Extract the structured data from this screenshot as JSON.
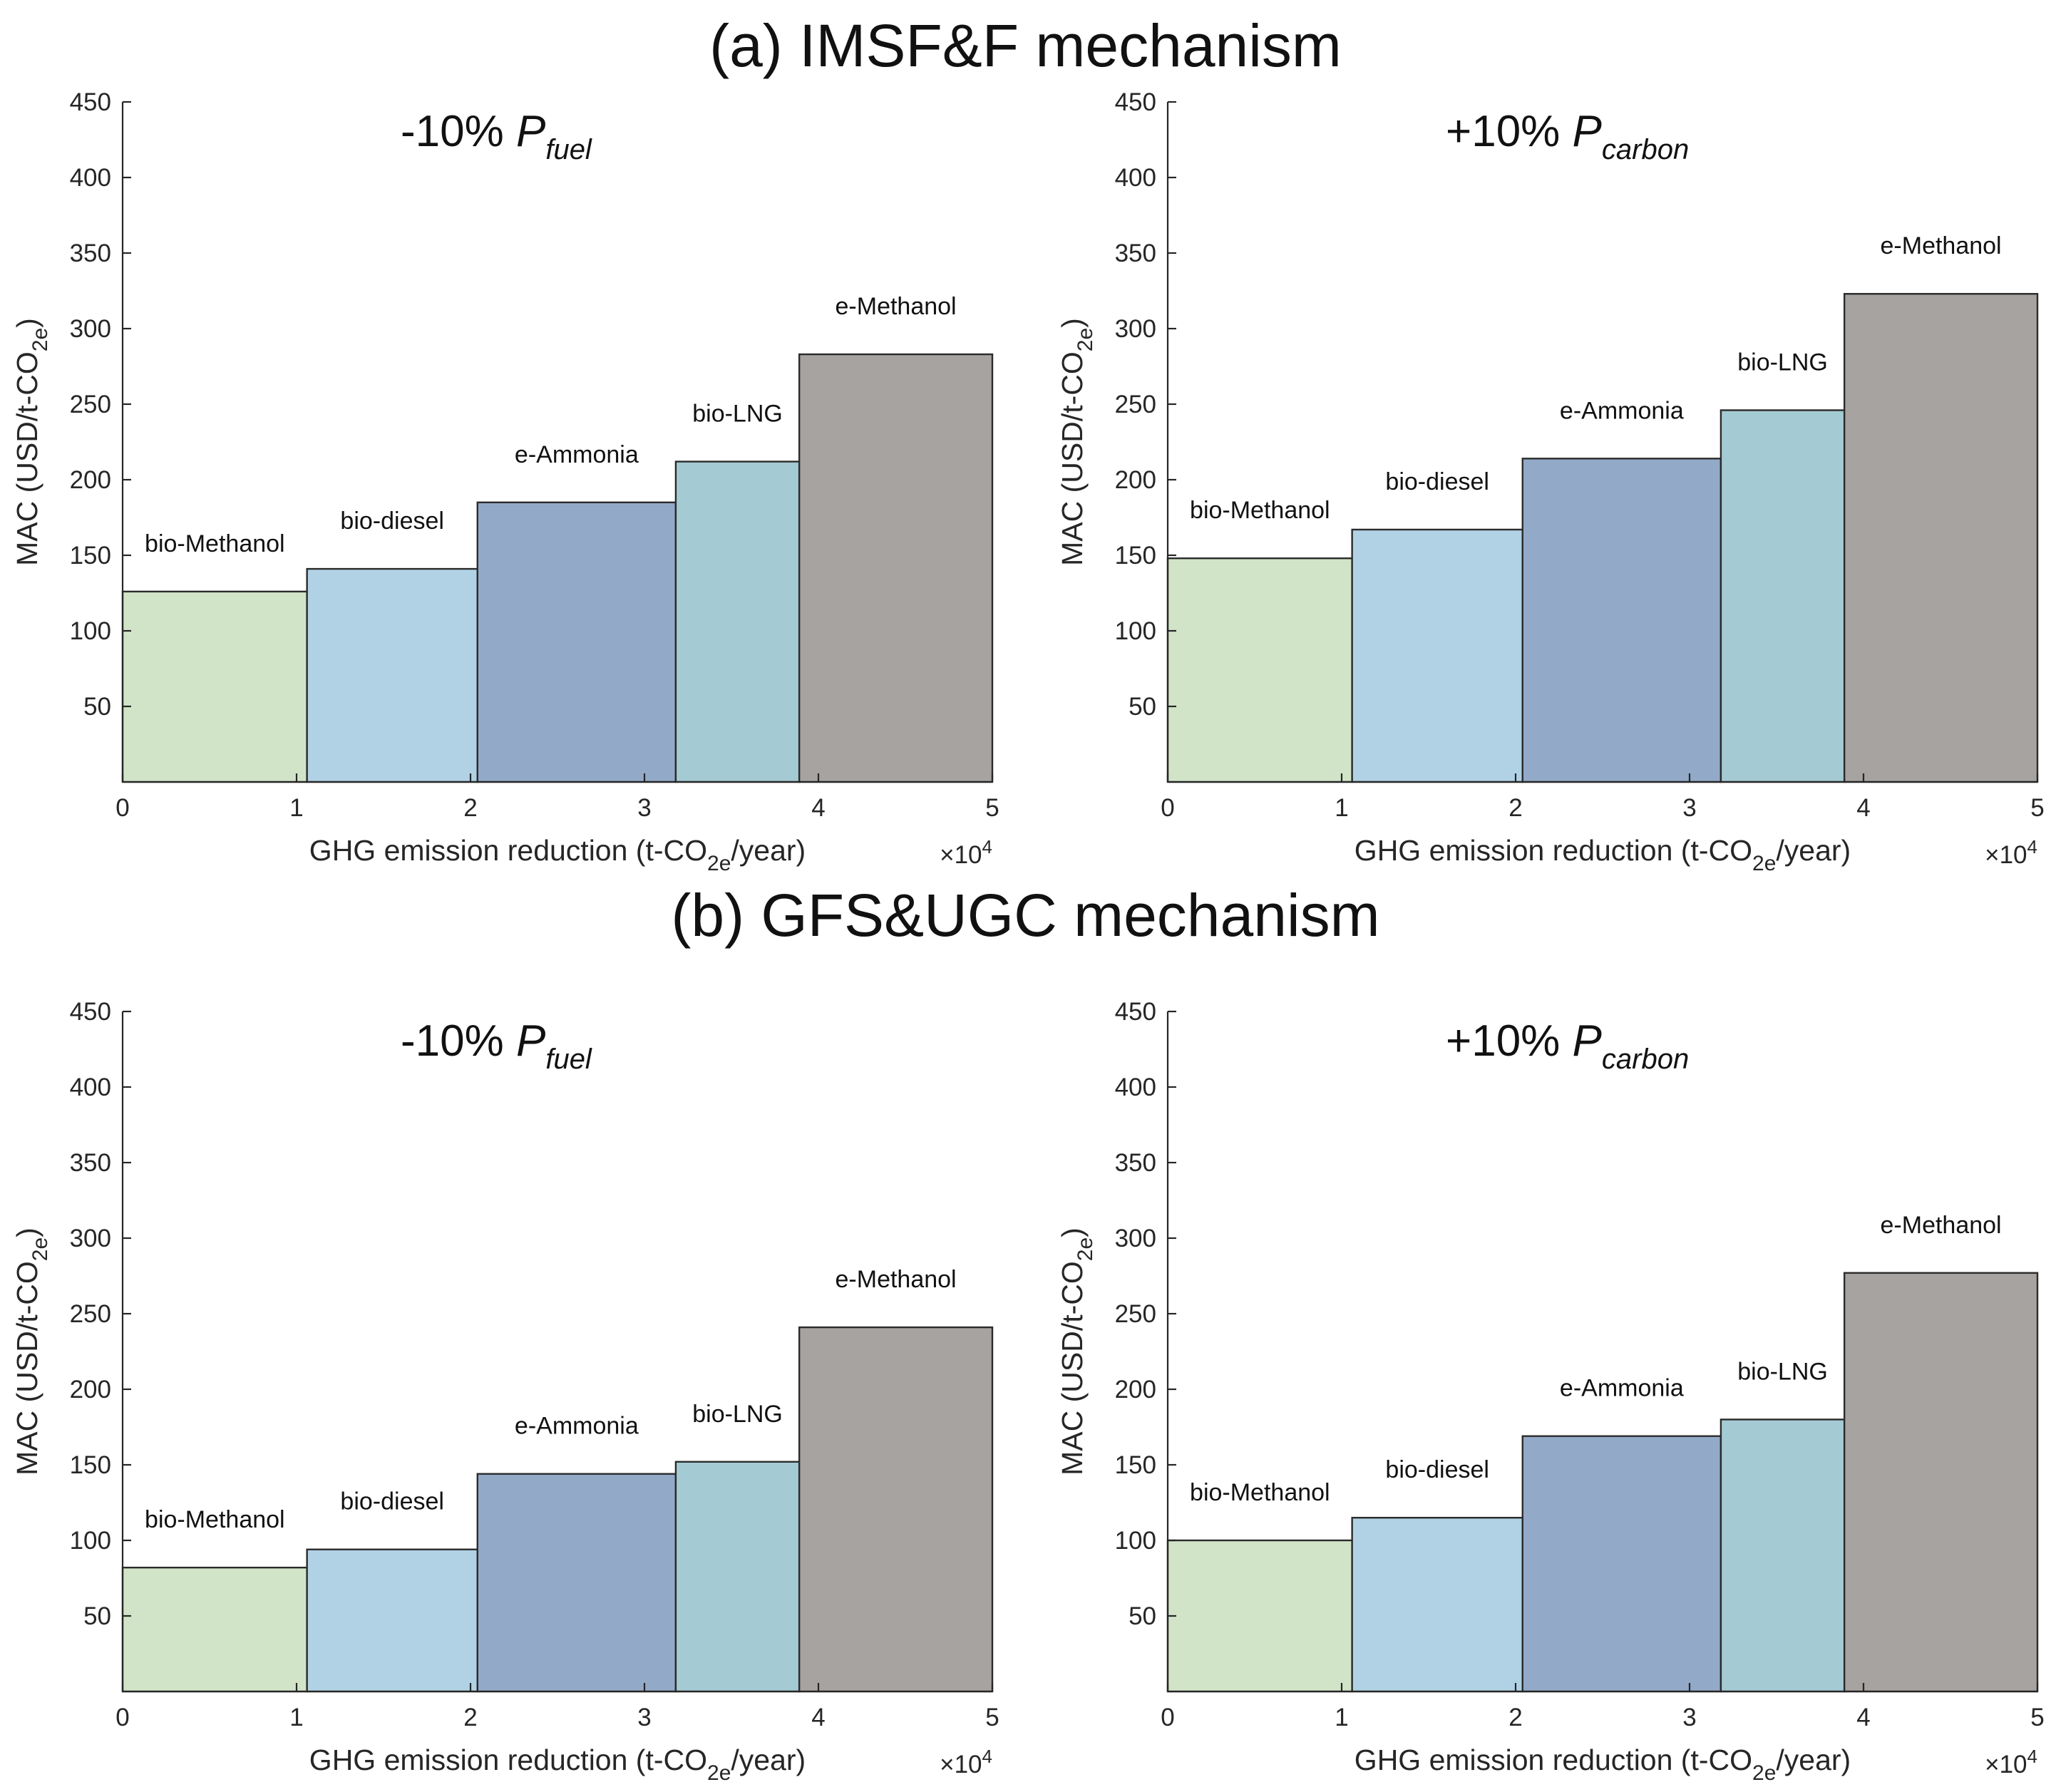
{
  "figure": {
    "section_titles": [
      "(a) IMSF&F mechanism",
      "(b) GFS&UGC mechanism"
    ]
  },
  "colors": {
    "bio-Methanol": "#d2e4c8",
    "bio-diesel": "#b1d2e5",
    "e-Ammonia": "#93a9c8",
    "bio-LNG": "#a4cbd3",
    "e-Methanol": "#a6a3a1"
  },
  "chart_data": [
    {
      "type": "bar",
      "section": "(a) IMSF&F mechanism",
      "title_prefix": "-10% ",
      "title_var": "P",
      "title_sub": "fuel",
      "xlabel": "GHG emission reduction (t-CO2e/year)",
      "xlabel_parts": [
        "GHG emission reduction (t-CO",
        "2e",
        "/year)"
      ],
      "ylabel": "MAC (USD/t-CO2e)",
      "ylabel_parts": [
        "MAC (USD/t-CO",
        "2e",
        ")"
      ],
      "x_multiplier": "×10",
      "x_multiplier_exp": "4",
      "xlim": [
        0,
        5
      ],
      "ylim": [
        0,
        450
      ],
      "xticks": [
        0,
        1,
        2,
        3,
        4,
        5
      ],
      "yticks": [
        50,
        100,
        150,
        200,
        250,
        300,
        350,
        400,
        450
      ],
      "bars": [
        {
          "name": "bio-Methanol",
          "x_start": 0.0,
          "x_end": 1.06,
          "value": 126
        },
        {
          "name": "bio-diesel",
          "x_start": 1.06,
          "x_end": 2.04,
          "value": 141
        },
        {
          "name": "e-Ammonia",
          "x_start": 2.04,
          "x_end": 3.18,
          "value": 185
        },
        {
          "name": "bio-LNG",
          "x_start": 3.18,
          "x_end": 3.89,
          "value": 212
        },
        {
          "name": "e-Methanol",
          "x_start": 3.89,
          "x_end": 5.0,
          "value": 283
        }
      ]
    },
    {
      "type": "bar",
      "section": "(a) IMSF&F mechanism",
      "title_prefix": "+10% ",
      "title_var": "P",
      "title_sub": "carbon",
      "xlabel": "GHG emission reduction (t-CO2e/year)",
      "xlabel_parts": [
        "GHG emission reduction (t-CO",
        "2e",
        "/year)"
      ],
      "ylabel": "MAC (USD/t-CO2e)",
      "ylabel_parts": [
        "MAC (USD/t-CO",
        "2e",
        ")"
      ],
      "x_multiplier": "×10",
      "x_multiplier_exp": "4",
      "xlim": [
        0,
        5
      ],
      "ylim": [
        0,
        450
      ],
      "xticks": [
        0,
        1,
        2,
        3,
        4,
        5
      ],
      "yticks": [
        50,
        100,
        150,
        200,
        250,
        300,
        350,
        400,
        450
      ],
      "bars": [
        {
          "name": "bio-Methanol",
          "x_start": 0.0,
          "x_end": 1.06,
          "value": 148
        },
        {
          "name": "bio-diesel",
          "x_start": 1.06,
          "x_end": 2.04,
          "value": 167
        },
        {
          "name": "e-Ammonia",
          "x_start": 2.04,
          "x_end": 3.18,
          "value": 214
        },
        {
          "name": "bio-LNG",
          "x_start": 3.18,
          "x_end": 3.89,
          "value": 246
        },
        {
          "name": "e-Methanol",
          "x_start": 3.89,
          "x_end": 5.0,
          "value": 323
        }
      ]
    },
    {
      "type": "bar",
      "section": "(b) GFS&UGC mechanism",
      "title_prefix": "-10% ",
      "title_var": "P",
      "title_sub": "fuel",
      "xlabel": "GHG emission reduction (t-CO2e/year)",
      "xlabel_parts": [
        "GHG emission reduction (t-CO",
        "2e",
        "/year)"
      ],
      "ylabel": "MAC (USD/t-CO2e)",
      "ylabel_parts": [
        "MAC (USD/t-CO",
        "2e",
        ")"
      ],
      "x_multiplier": "×10",
      "x_multiplier_exp": "4",
      "xlim": [
        0,
        5
      ],
      "ylim": [
        0,
        450
      ],
      "xticks": [
        0,
        1,
        2,
        3,
        4,
        5
      ],
      "yticks": [
        50,
        100,
        150,
        200,
        250,
        300,
        350,
        400,
        450
      ],
      "bars": [
        {
          "name": "bio-Methanol",
          "x_start": 0.0,
          "x_end": 1.06,
          "value": 82
        },
        {
          "name": "bio-diesel",
          "x_start": 1.06,
          "x_end": 2.04,
          "value": 94
        },
        {
          "name": "e-Ammonia",
          "x_start": 2.04,
          "x_end": 3.18,
          "value": 144
        },
        {
          "name": "bio-LNG",
          "x_start": 3.18,
          "x_end": 3.89,
          "value": 152
        },
        {
          "name": "e-Methanol",
          "x_start": 3.89,
          "x_end": 5.0,
          "value": 241
        }
      ]
    },
    {
      "type": "bar",
      "section": "(b) GFS&UGC mechanism",
      "title_prefix": "+10% ",
      "title_var": "P",
      "title_sub": "carbon",
      "xlabel": "GHG emission reduction (t-CO2e/year)",
      "xlabel_parts": [
        "GHG emission reduction (t-CO",
        "2e",
        "/year)"
      ],
      "ylabel": "MAC (USD/t-CO2e)",
      "ylabel_parts": [
        "MAC (USD/t-CO",
        "2e",
        ")"
      ],
      "x_multiplier": "×10",
      "x_multiplier_exp": "4",
      "xlim": [
        0,
        5
      ],
      "ylim": [
        0,
        450
      ],
      "xticks": [
        0,
        1,
        2,
        3,
        4,
        5
      ],
      "yticks": [
        50,
        100,
        150,
        200,
        250,
        300,
        350,
        400,
        450
      ],
      "bars": [
        {
          "name": "bio-Methanol",
          "x_start": 0.0,
          "x_end": 1.06,
          "value": 100
        },
        {
          "name": "bio-diesel",
          "x_start": 1.06,
          "x_end": 2.04,
          "value": 115
        },
        {
          "name": "e-Ammonia",
          "x_start": 2.04,
          "x_end": 3.18,
          "value": 169
        },
        {
          "name": "bio-LNG",
          "x_start": 3.18,
          "x_end": 3.89,
          "value": 180
        },
        {
          "name": "e-Methanol",
          "x_start": 3.89,
          "x_end": 5.0,
          "value": 277
        }
      ]
    }
  ]
}
